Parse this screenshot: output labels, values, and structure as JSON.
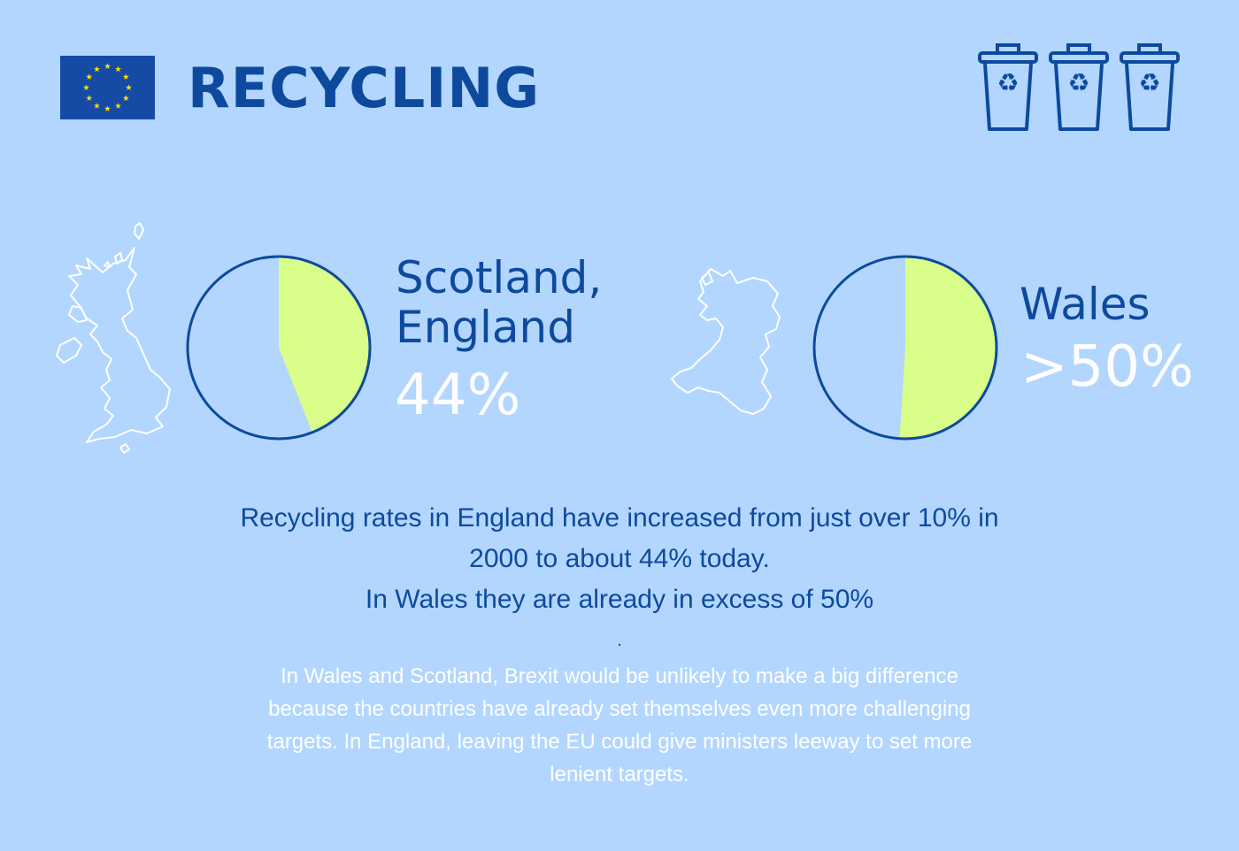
{
  "header": {
    "title": "RECYCLING",
    "flag_icon": "eu-flag-icon",
    "bin_icon": "recycling-bin-icon"
  },
  "stats": [
    {
      "map_icon": "great-britain-map-icon",
      "label_lines": [
        "Scotland,",
        "England"
      ],
      "value_text": "44%",
      "share": 0.44
    },
    {
      "map_icon": "wales-map-icon",
      "label_lines": [
        "Wales"
      ],
      "value_text": ">50%",
      "share": 0.51
    }
  ],
  "body": {
    "main_lines": [
      "Recycling rates in England have increased from just over 10% in",
      "2000 to about 44% today.",
      "In Wales they are already in excess of 50%"
    ],
    "separator": ".",
    "note_lines": [
      "In Wales and Scotland, Brexit would be unlikely to make a big difference",
      "because the countries have already set themselves even more challenging",
      "targets. In England, leaving the EU could give ministers leeway to set more",
      "lenient targets."
    ]
  },
  "colors": {
    "background": "#b3d6ff",
    "primary": "#0d4a9e",
    "pie_fill": "#d9ff8a",
    "pie_empty": "#b3d6ff",
    "flag_blue": "#164ba5",
    "flag_star": "#ffdd00",
    "white": "#ffffff"
  }
}
